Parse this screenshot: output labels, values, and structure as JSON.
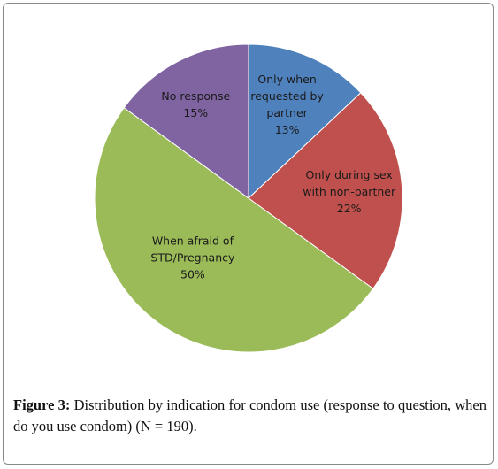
{
  "chart_data": {
    "type": "pie",
    "slices": [
      {
        "name": "Only when requested by partner",
        "label_lines": [
          "Only when",
          "requested by",
          "partner"
        ],
        "value": 13,
        "percent_label": "13%",
        "color": "#4f81bd"
      },
      {
        "name": "Only during sex with non-partner",
        "label_lines": [
          "Only during sex",
          "with non-partner"
        ],
        "value": 22,
        "percent_label": "22%",
        "color": "#c0504d"
      },
      {
        "name": "When afraid of STD/Pregnancy",
        "label_lines": [
          "When afraid of",
          "STD/Pregnancy"
        ],
        "value": 50,
        "percent_label": "50%",
        "color": "#9bbb59"
      },
      {
        "name": "No response",
        "label_lines": [
          "No response"
        ],
        "value": 15,
        "percent_label": "15%",
        "color": "#8064a2"
      }
    ],
    "start_angle": "12 o'clock",
    "direction": "clockwise",
    "legend": "none",
    "labels": "inside slices"
  },
  "caption": {
    "label": "Figure 3:",
    "text": " Distribution by indication for condom use (response to question, when do you use condom) (N = 190)."
  }
}
